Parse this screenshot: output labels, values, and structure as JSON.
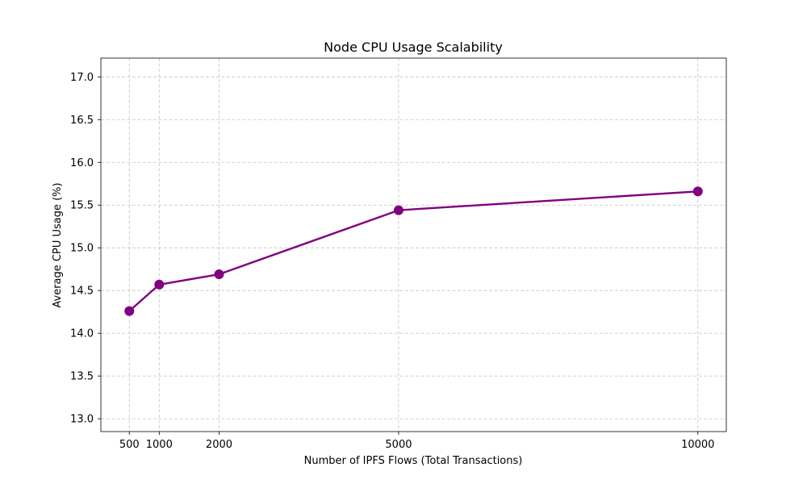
{
  "chart_data": {
    "type": "line",
    "title": "Node CPU Usage Scalability",
    "xlabel": "Number of IPFS Flows (Total Transactions)",
    "ylabel": "Average CPU Usage (%)",
    "x": [
      500,
      1000,
      2000,
      5000,
      10000
    ],
    "x_tick_labels": [
      "500",
      "1000",
      "2000",
      "5000",
      "10000"
    ],
    "xlim": [
      25,
      10475
    ],
    "y_ticks": [
      13.0,
      13.5,
      14.0,
      14.5,
      15.0,
      15.5,
      16.0,
      16.5,
      17.0
    ],
    "y_tick_labels": [
      "13.0",
      "13.5",
      "14.0",
      "14.5",
      "15.0",
      "15.5",
      "16.0",
      "16.5",
      "17.0"
    ],
    "ylim": [
      12.85,
      17.22
    ],
    "grid": true,
    "series": [
      {
        "values": [
          14.26,
          14.57,
          14.69,
          15.44,
          15.66
        ],
        "color": "#800080",
        "marker": "circle"
      }
    ]
  }
}
